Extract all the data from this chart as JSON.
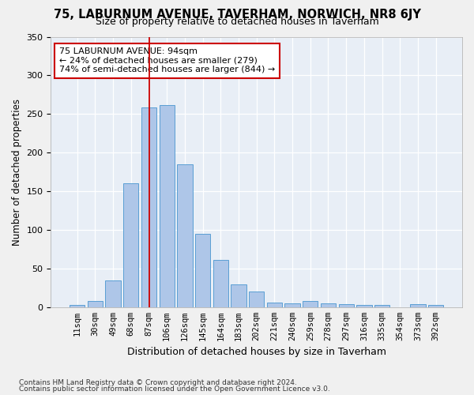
{
  "title": "75, LABURNUM AVENUE, TAVERHAM, NORWICH, NR8 6JY",
  "subtitle": "Size of property relative to detached houses in Taverham",
  "xlabel": "Distribution of detached houses by size in Taverham",
  "ylabel": "Number of detached properties",
  "bar_color": "#aec6e8",
  "bar_edge_color": "#5a9fd4",
  "bg_color": "#e8eef6",
  "grid_color": "#ffffff",
  "categories": [
    "11sqm",
    "30sqm",
    "49sqm",
    "68sqm",
    "87sqm",
    "106sqm",
    "126sqm",
    "145sqm",
    "164sqm",
    "183sqm",
    "202sqm",
    "221sqm",
    "240sqm",
    "259sqm",
    "278sqm",
    "297sqm",
    "316sqm",
    "335sqm",
    "354sqm",
    "373sqm",
    "392sqm"
  ],
  "values": [
    3,
    8,
    35,
    160,
    258,
    262,
    185,
    95,
    61,
    29,
    20,
    6,
    5,
    8,
    5,
    4,
    3,
    3,
    0,
    4,
    3
  ],
  "ylim": [
    0,
    350
  ],
  "yticks": [
    0,
    50,
    100,
    150,
    200,
    250,
    300,
    350
  ],
  "annotation_text": "75 LABURNUM AVENUE: 94sqm\n← 24% of detached houses are smaller (279)\n74% of semi-detached houses are larger (844) →",
  "annotation_box_color": "#ffffff",
  "annotation_box_edge": "#cc0000",
  "vline_color": "#cc0000",
  "vline_pos": 4.0,
  "footnote1": "Contains HM Land Registry data © Crown copyright and database right 2024.",
  "footnote2": "Contains public sector information licensed under the Open Government Licence v3.0."
}
